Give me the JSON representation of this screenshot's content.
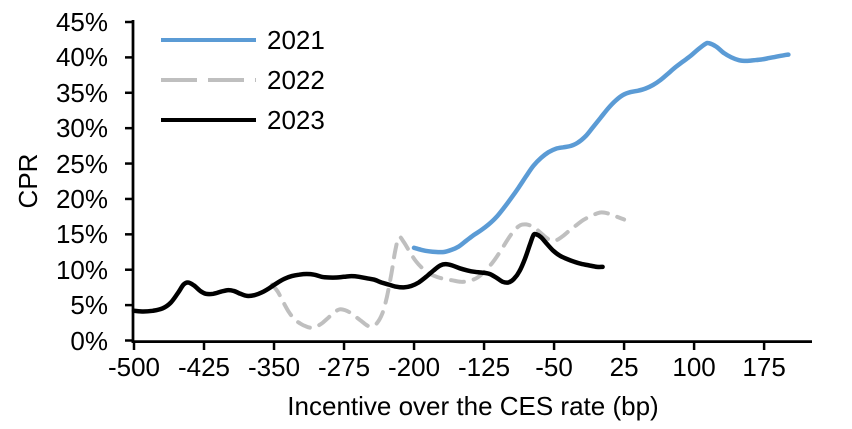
{
  "chart_data": {
    "type": "line",
    "title": "",
    "xlabel": "Incentive over the CES rate (bp)",
    "ylabel": "CPR",
    "xlim": [
      -500,
      226.3
    ],
    "ylim": [
      0,
      45
    ],
    "grid": false,
    "legend_position": "top-left-inside",
    "axis_color": "#000000",
    "x_ticks": [
      -500,
      -425,
      -350,
      -275,
      -200,
      -125,
      -50,
      25,
      100,
      175
    ],
    "x_tick_labels": [
      "-500",
      "-425",
      "-350",
      "-275",
      "-200",
      "-125",
      "-50",
      "25",
      "100",
      "175"
    ],
    "y_ticks": [
      0,
      5,
      10,
      15,
      20,
      25,
      30,
      35,
      40,
      45
    ],
    "y_tick_labels": [
      "0%",
      "5%",
      "10%",
      "15%",
      "20%",
      "25%",
      "30%",
      "35%",
      "40%",
      "45%"
    ],
    "series": [
      {
        "name": "2021",
        "color": "#5B9BD5",
        "dash": null,
        "width": 4.5,
        "points": [
          [
            -200,
            13.1
          ],
          [
            -192,
            12.8
          ],
          [
            -184,
            12.6
          ],
          [
            -176,
            12.5
          ],
          [
            -168,
            12.5
          ],
          [
            -160,
            12.8
          ],
          [
            -152,
            13.3
          ],
          [
            -144,
            14.1
          ],
          [
            -136,
            14.9
          ],
          [
            -128,
            15.6
          ],
          [
            -120,
            16.4
          ],
          [
            -112,
            17.4
          ],
          [
            -104,
            18.7
          ],
          [
            -96,
            20.1
          ],
          [
            -88,
            21.6
          ],
          [
            -80,
            23.2
          ],
          [
            -72,
            24.7
          ],
          [
            -64,
            25.8
          ],
          [
            -56,
            26.6
          ],
          [
            -48,
            27.1
          ],
          [
            -40,
            27.3
          ],
          [
            -32,
            27.5
          ],
          [
            -24,
            28.0
          ],
          [
            -16,
            28.9
          ],
          [
            -8,
            30.2
          ],
          [
            0,
            31.5
          ],
          [
            8,
            32.8
          ],
          [
            16,
            33.9
          ],
          [
            24,
            34.7
          ],
          [
            32,
            35.1
          ],
          [
            40,
            35.3
          ],
          [
            48,
            35.6
          ],
          [
            56,
            36.1
          ],
          [
            64,
            36.8
          ],
          [
            72,
            37.7
          ],
          [
            80,
            38.6
          ],
          [
            88,
            39.4
          ],
          [
            96,
            40.2
          ],
          [
            104,
            41.1
          ],
          [
            112,
            41.9
          ],
          [
            116,
            42.0
          ],
          [
            124,
            41.5
          ],
          [
            132,
            40.6
          ],
          [
            140,
            40.0
          ],
          [
            148,
            39.6
          ],
          [
            156,
            39.5
          ],
          [
            164,
            39.6
          ],
          [
            172,
            39.7
          ],
          [
            180,
            39.9
          ],
          [
            188,
            40.1
          ],
          [
            196,
            40.3
          ],
          [
            201,
            40.4
          ]
        ]
      },
      {
        "name": "2022",
        "color": "#BFBFBF",
        "dash": "13 10",
        "width": 4,
        "points": [
          [
            -352,
            7.9
          ],
          [
            -346,
            6.9
          ],
          [
            -340,
            5.4
          ],
          [
            -334,
            4.0
          ],
          [
            -328,
            3.0
          ],
          [
            -322,
            2.4
          ],
          [
            -316,
            2.0
          ],
          [
            -310,
            1.8
          ],
          [
            -304,
            2.0
          ],
          [
            -298,
            2.5
          ],
          [
            -292,
            3.2
          ],
          [
            -286,
            3.9
          ],
          [
            -280,
            4.4
          ],
          [
            -274,
            4.3
          ],
          [
            -268,
            3.9
          ],
          [
            -262,
            3.3
          ],
          [
            -256,
            2.7
          ],
          [
            -250,
            2.1
          ],
          [
            -245,
            2.0
          ],
          [
            -240,
            2.4
          ],
          [
            -234,
            3.8
          ],
          [
            -229,
            6.2
          ],
          [
            -224,
            9.6
          ],
          [
            -220,
            12.8
          ],
          [
            -216,
            14.6
          ],
          [
            -211,
            13.9
          ],
          [
            -205,
            12.6
          ],
          [
            -198,
            11.2
          ],
          [
            -191,
            10.2
          ],
          [
            -184,
            9.5
          ],
          [
            -176,
            9.0
          ],
          [
            -168,
            8.7
          ],
          [
            -159,
            8.5
          ],
          [
            -150,
            8.3
          ],
          [
            -141,
            8.4
          ],
          [
            -132,
            8.9
          ],
          [
            -124,
            9.8
          ],
          [
            -116,
            11.0
          ],
          [
            -108,
            12.5
          ],
          [
            -100,
            14.2
          ],
          [
            -93,
            15.5
          ],
          [
            -86,
            16.3
          ],
          [
            -80,
            16.4
          ],
          [
            -73,
            16.1
          ],
          [
            -66,
            15.4
          ],
          [
            -59,
            14.6
          ],
          [
            -53,
            14.1
          ],
          [
            -47,
            14.2
          ],
          [
            -40,
            14.8
          ],
          [
            -33,
            15.6
          ],
          [
            -26,
            16.3
          ],
          [
            -19,
            17.0
          ],
          [
            -12,
            17.5
          ],
          [
            -5,
            17.9
          ],
          [
            1,
            18.1
          ],
          [
            9,
            17.9
          ],
          [
            17,
            17.5
          ],
          [
            25,
            17.1
          ]
        ]
      },
      {
        "name": "2023",
        "color": "#000000",
        "dash": null,
        "width": 4.5,
        "points": [
          [
            -500,
            4.2
          ],
          [
            -490,
            4.1
          ],
          [
            -480,
            4.2
          ],
          [
            -470,
            4.5
          ],
          [
            -461,
            5.3
          ],
          [
            -453,
            6.7
          ],
          [
            -447,
            7.9
          ],
          [
            -442,
            8.2
          ],
          [
            -436,
            7.8
          ],
          [
            -429,
            7.0
          ],
          [
            -423,
            6.6
          ],
          [
            -415,
            6.6
          ],
          [
            -407,
            6.9
          ],
          [
            -400,
            7.1
          ],
          [
            -393,
            7.0
          ],
          [
            -386,
            6.6
          ],
          [
            -379,
            6.3
          ],
          [
            -371,
            6.4
          ],
          [
            -363,
            6.8
          ],
          [
            -355,
            7.4
          ],
          [
            -347,
            8.1
          ],
          [
            -339,
            8.7
          ],
          [
            -331,
            9.1
          ],
          [
            -323,
            9.3
          ],
          [
            -315,
            9.4
          ],
          [
            -307,
            9.3
          ],
          [
            -299,
            9.0
          ],
          [
            -291,
            8.9
          ],
          [
            -283,
            8.9
          ],
          [
            -275,
            9.0
          ],
          [
            -267,
            9.1
          ],
          [
            -259,
            9.0
          ],
          [
            -251,
            8.8
          ],
          [
            -243,
            8.6
          ],
          [
            -235,
            8.2
          ],
          [
            -227,
            7.9
          ],
          [
            -219,
            7.6
          ],
          [
            -211,
            7.5
          ],
          [
            -203,
            7.7
          ],
          [
            -195,
            8.2
          ],
          [
            -187,
            9.0
          ],
          [
            -179,
            9.9
          ],
          [
            -172,
            10.6
          ],
          [
            -166,
            10.8
          ],
          [
            -159,
            10.6
          ],
          [
            -151,
            10.2
          ],
          [
            -143,
            9.9
          ],
          [
            -135,
            9.7
          ],
          [
            -127,
            9.6
          ],
          [
            -119,
            9.4
          ],
          [
            -111,
            8.8
          ],
          [
            -105,
            8.3
          ],
          [
            -99,
            8.2
          ],
          [
            -93,
            8.7
          ],
          [
            -87,
            9.8
          ],
          [
            -81,
            11.6
          ],
          [
            -76,
            13.5
          ],
          [
            -72,
            14.9
          ],
          [
            -69,
            15.0
          ],
          [
            -64,
            14.6
          ],
          [
            -58,
            13.7
          ],
          [
            -51,
            12.7
          ],
          [
            -44,
            12.0
          ],
          [
            -36,
            11.5
          ],
          [
            -28,
            11.1
          ],
          [
            -20,
            10.8
          ],
          [
            -12,
            10.6
          ],
          [
            -4,
            10.4
          ],
          [
            2,
            10.4
          ]
        ]
      }
    ]
  }
}
